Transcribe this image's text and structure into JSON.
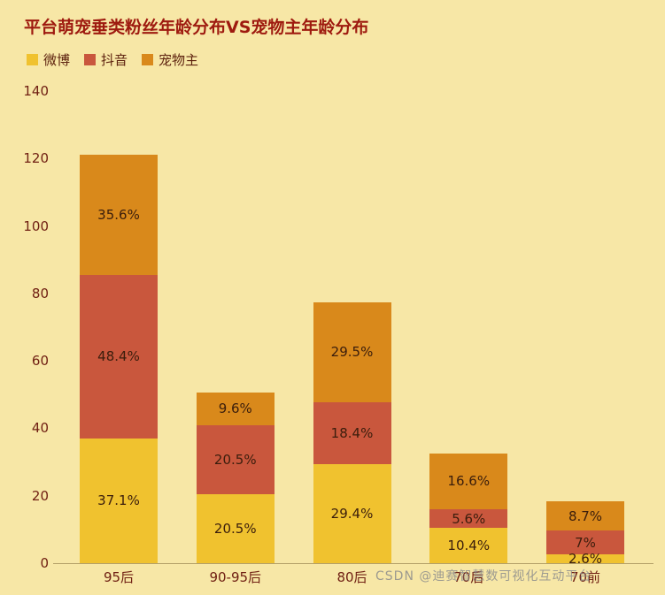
{
  "chart_data": {
    "type": "bar",
    "stacked": true,
    "title": "平台萌宠垂类粉丝年龄分布VS宠物主年龄分布",
    "categories": [
      "95后",
      "90-95后",
      "80后",
      "70后",
      "70前"
    ],
    "series": [
      {
        "name": "微博",
        "color": "#f0c22f",
        "values": [
          37.1,
          20.5,
          29.4,
          10.4,
          2.6
        ],
        "labels": [
          "37.1%",
          "20.5%",
          "29.4%",
          "10.4%",
          "2.6%"
        ]
      },
      {
        "name": "抖音",
        "color": "#c9573d",
        "values": [
          48.4,
          20.5,
          18.4,
          5.6,
          7
        ],
        "labels": [
          "48.4%",
          "20.5%",
          "18.4%",
          "5.6%",
          "7%"
        ]
      },
      {
        "name": "宠物主",
        "color": "#d9891b",
        "values": [
          35.6,
          9.6,
          29.5,
          16.6,
          8.7
        ],
        "labels": [
          "35.6%",
          "9.6%",
          "29.5%",
          "16.6%",
          "8.7%"
        ]
      }
    ],
    "ylim": [
      0,
      140
    ],
    "yticks": [
      0,
      20,
      40,
      60,
      80,
      100,
      120,
      140
    ],
    "xlabel": "",
    "ylabel": "",
    "legend_position": "top-left",
    "grid": false
  },
  "watermark": "CSDN @迪赛智慧数可视化互动平台",
  "colors": {
    "background": "#f7e7a6",
    "title_text": "#9e1a0f",
    "axis_text": "#702013",
    "segment_label_text": "#3a1d0c",
    "axis_line": "#b3a068",
    "watermark_text": "#8c8c8c"
  }
}
